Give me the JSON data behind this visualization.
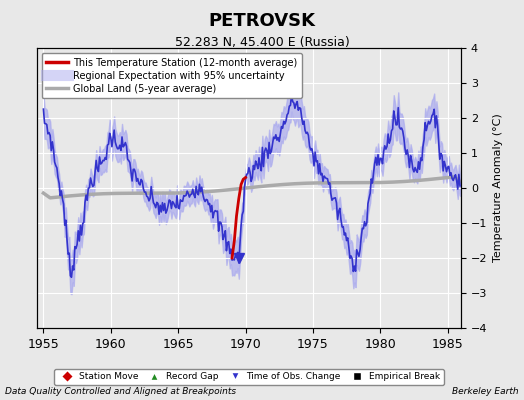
{
  "title": "PETROVSK",
  "subtitle": "52.283 N, 45.400 E (Russia)",
  "ylabel": "Temperature Anomaly (°C)",
  "footer_left": "Data Quality Controlled and Aligned at Breakpoints",
  "footer_right": "Berkeley Earth",
  "xlim": [
    1954.5,
    1986.0
  ],
  "ylim": [
    -4,
    4
  ],
  "xticks": [
    1955,
    1960,
    1965,
    1970,
    1975,
    1980,
    1985
  ],
  "yticks": [
    -4,
    -3,
    -2,
    -1,
    0,
    1,
    2,
    3,
    4
  ],
  "bg_color": "#e8e8e8",
  "plot_bg_color": "#e8e8e8",
  "grid_color": "#ffffff",
  "regional_color": "#3333cc",
  "regional_band_color": "#aaaaee",
  "station_color": "#cc0000",
  "global_color": "#aaaaaa",
  "legend_items": [
    {
      "label": "This Temperature Station (12-month average)",
      "color": "#cc0000",
      "lw": 2
    },
    {
      "label": "Regional Expectation with 95% uncertainty",
      "color": "#3333cc",
      "lw": 2
    },
    {
      "label": "Global Land (5-year average)",
      "color": "#aaaaaa",
      "lw": 2
    }
  ],
  "marker_legend": [
    {
      "label": "Station Move",
      "color": "#cc0000",
      "marker": "D"
    },
    {
      "label": "Record Gap",
      "color": "#228B22",
      "marker": "^"
    },
    {
      "label": "Time of Obs. Change",
      "color": "#3333cc",
      "marker": "v"
    },
    {
      "label": "Empirical Break",
      "color": "#000000",
      "marker": "s"
    }
  ],
  "time_of_obs_change_year": 1969.5
}
